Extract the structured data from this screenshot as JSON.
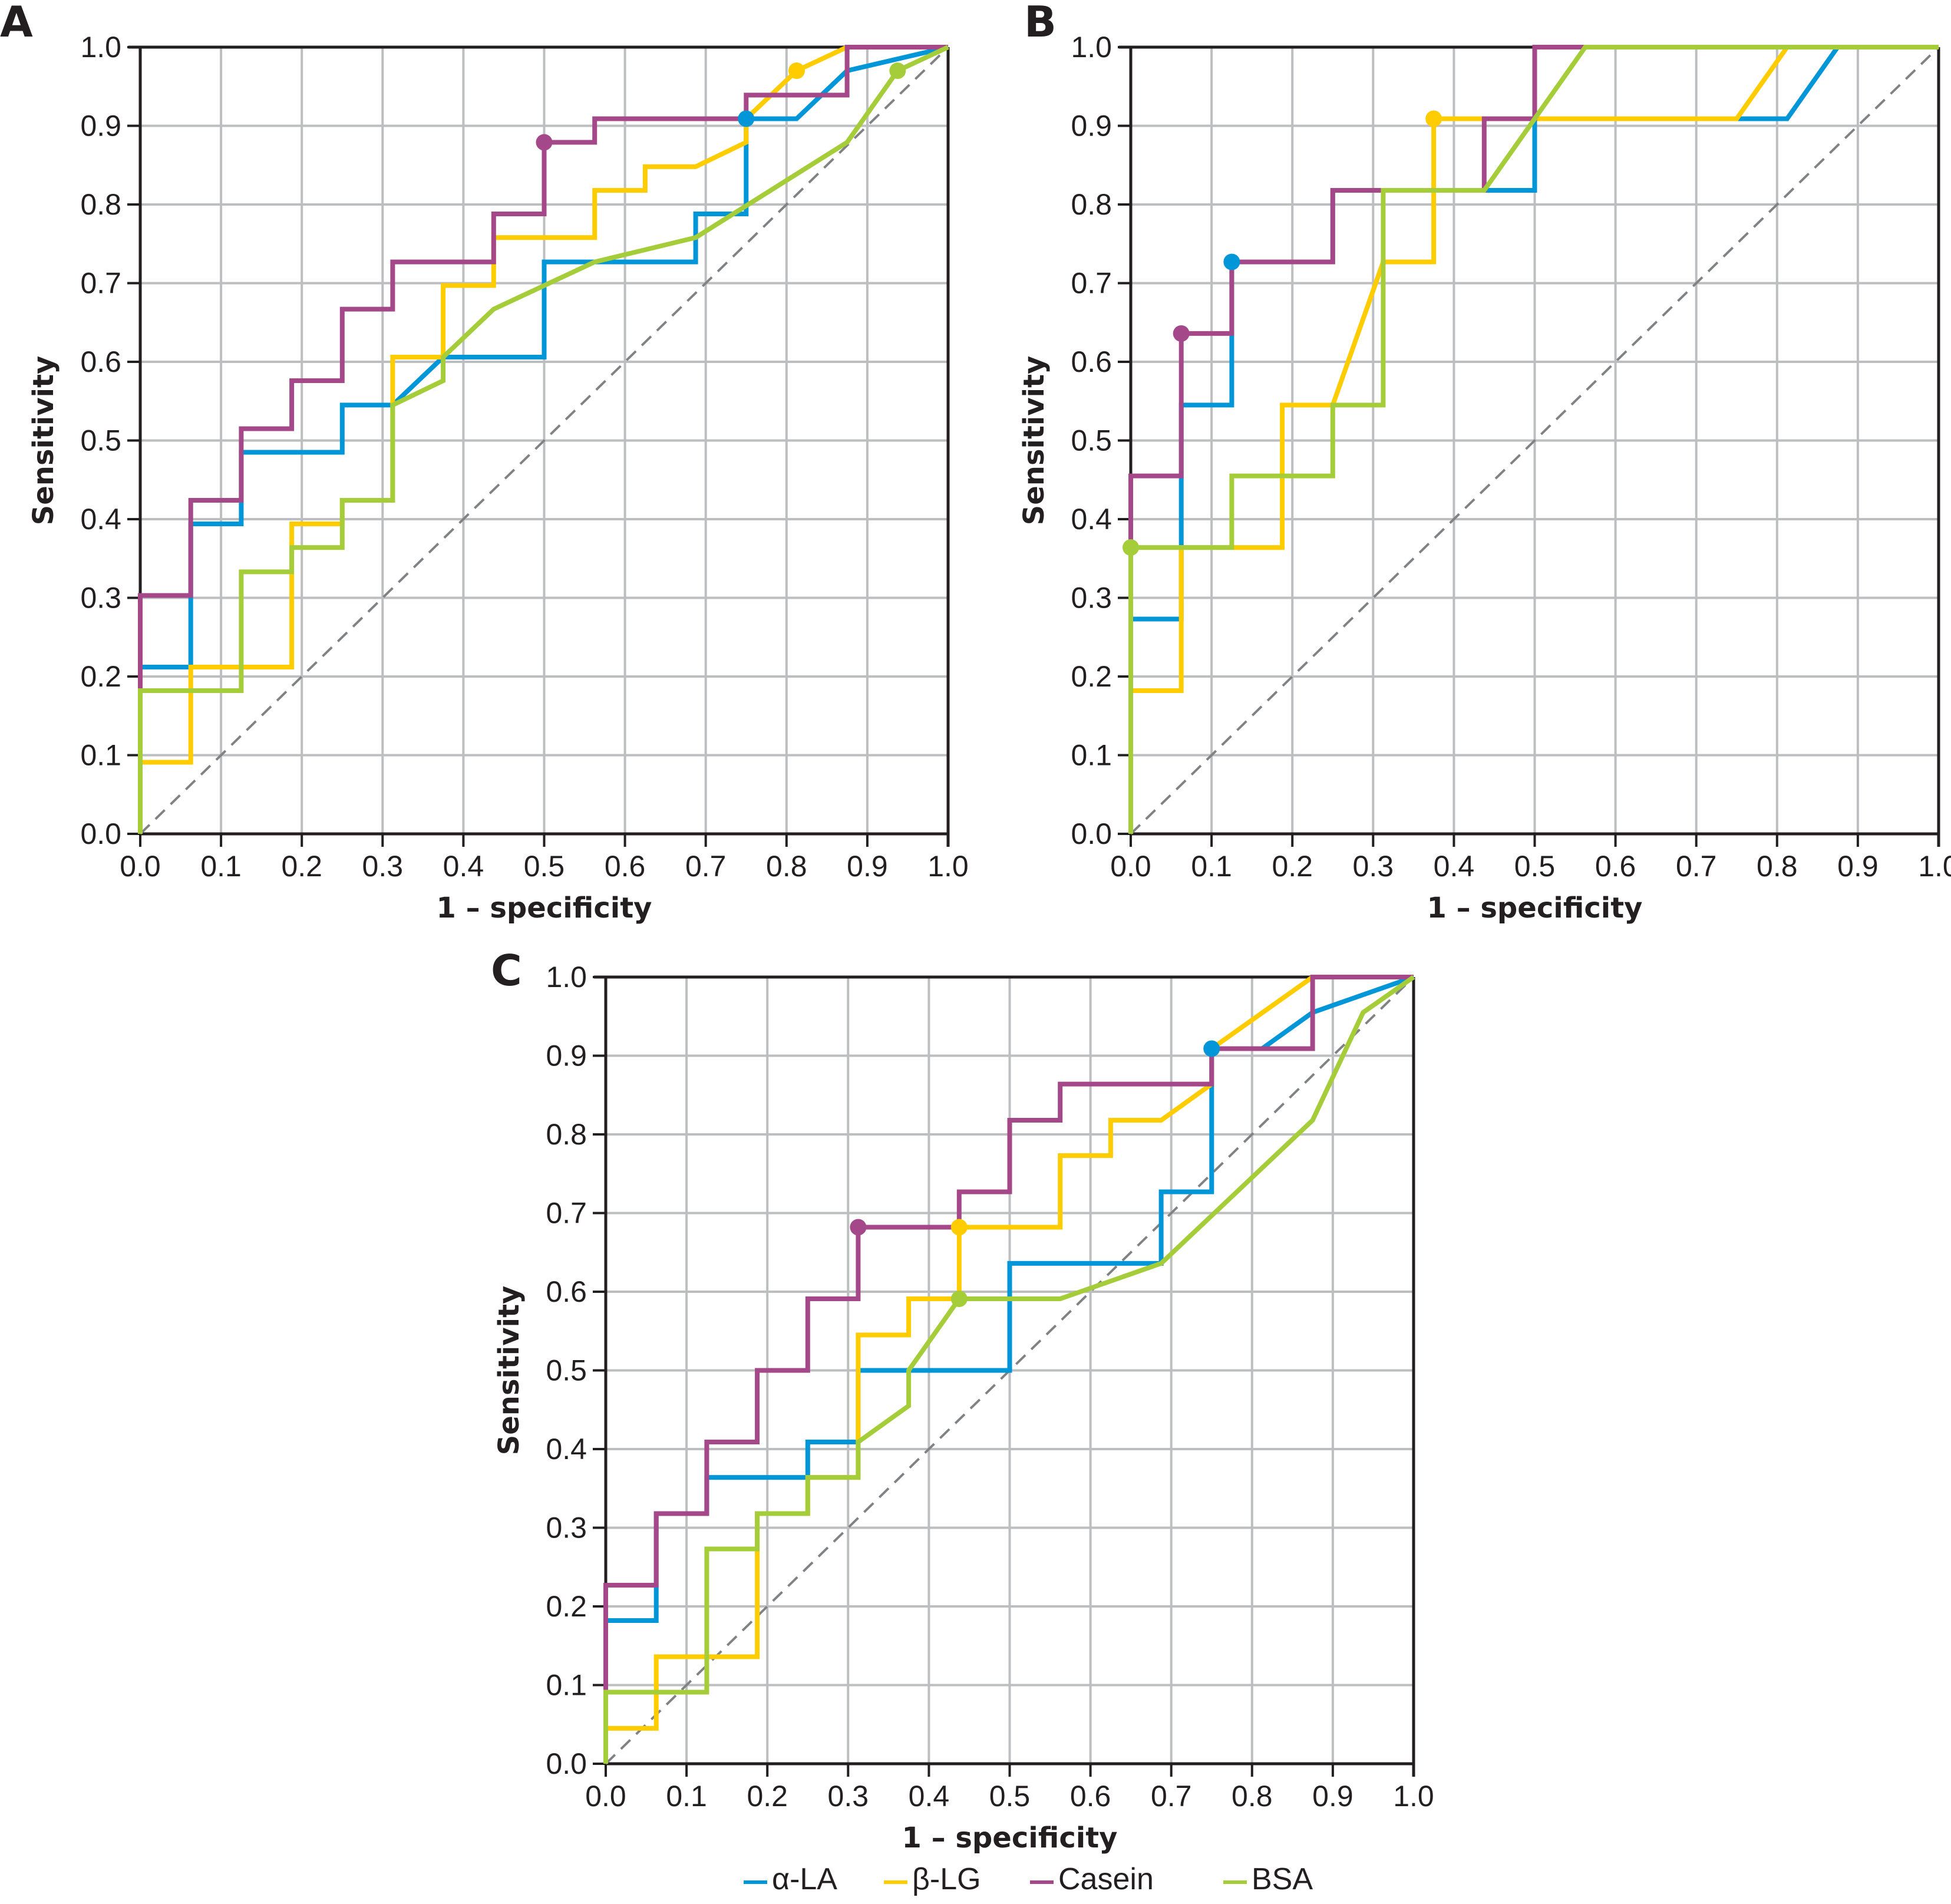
{
  "chart_data": [
    {
      "panel": "A",
      "type": "line",
      "title": "",
      "xlabel": "1 – specificity",
      "ylabel": "Sensitivity",
      "xlim": [
        0,
        1
      ],
      "ylim": [
        0,
        1
      ],
      "xticks": [
        "0.0",
        "0.1",
        "0.2",
        "0.3",
        "0.4",
        "0.5",
        "0.6",
        "0.7",
        "0.8",
        "0.9",
        "1.0"
      ],
      "yticks": [
        "0.0",
        "0.1",
        "0.2",
        "0.3",
        "0.4",
        "0.5",
        "0.6",
        "0.7",
        "0.8",
        "0.9",
        "1.0"
      ],
      "grid": true,
      "reference_line": "diagonal dashed",
      "series": [
        {
          "name": "α-LA",
          "color": "#0096d8",
          "points": [
            [
              0,
              0
            ],
            [
              0,
              0.212
            ],
            [
              0.0625,
              0.212
            ],
            [
              0.0625,
              0.394
            ],
            [
              0.125,
              0.394
            ],
            [
              0.125,
              0.485
            ],
            [
              0.25,
              0.485
            ],
            [
              0.25,
              0.545
            ],
            [
              0.3125,
              0.545
            ],
            [
              0.3125,
              0.545
            ],
            [
              0.375,
              0.606
            ],
            [
              0.5,
              0.606
            ],
            [
              0.5,
              0.727
            ],
            [
              0.6875,
              0.727
            ],
            [
              0.6875,
              0.788
            ],
            [
              0.75,
              0.788
            ],
            [
              0.75,
              0.909
            ],
            [
              0.8125,
              0.909
            ],
            [
              0.875,
              0.97
            ],
            [
              1,
              1
            ]
          ],
          "cutoff": [
            0.75,
            0.909
          ]
        },
        {
          "name": "β-LG",
          "color": "#ffcc00",
          "points": [
            [
              0,
              0
            ],
            [
              0,
              0.091
            ],
            [
              0.0625,
              0.091
            ],
            [
              0.0625,
              0.212
            ],
            [
              0.1875,
              0.212
            ],
            [
              0.1875,
              0.394
            ],
            [
              0.25,
              0.394
            ],
            [
              0.25,
              0.424
            ],
            [
              0.3125,
              0.424
            ],
            [
              0.3125,
              0.606
            ],
            [
              0.375,
              0.606
            ],
            [
              0.375,
              0.697
            ],
            [
              0.4375,
              0.697
            ],
            [
              0.4375,
              0.758
            ],
            [
              0.5625,
              0.758
            ],
            [
              0.5625,
              0.818
            ],
            [
              0.625,
              0.818
            ],
            [
              0.625,
              0.848
            ],
            [
              0.6875,
              0.848
            ],
            [
              0.75,
              0.879
            ],
            [
              0.75,
              0.909
            ],
            [
              0.8125,
              0.97
            ],
            [
              0.875,
              1.0
            ],
            [
              1,
              1
            ]
          ],
          "cutoff": [
            0.8125,
            0.97
          ]
        },
        {
          "name": "Casein",
          "color": "#a4488a",
          "points": [
            [
              0,
              0.182
            ],
            [
              0,
              0.303
            ],
            [
              0.0625,
              0.303
            ],
            [
              0.0625,
              0.424
            ],
            [
              0.125,
              0.424
            ],
            [
              0.125,
              0.515
            ],
            [
              0.1875,
              0.515
            ],
            [
              0.1875,
              0.576
            ],
            [
              0.25,
              0.576
            ],
            [
              0.25,
              0.667
            ],
            [
              0.3125,
              0.667
            ],
            [
              0.3125,
              0.727
            ],
            [
              0.4375,
              0.727
            ],
            [
              0.4375,
              0.788
            ],
            [
              0.5,
              0.788
            ],
            [
              0.5,
              0.879
            ],
            [
              0.5625,
              0.879
            ],
            [
              0.5625,
              0.909
            ],
            [
              0.75,
              0.909
            ],
            [
              0.75,
              0.939
            ],
            [
              0.875,
              0.939
            ],
            [
              0.875,
              1.0
            ],
            [
              1,
              1
            ]
          ],
          "cutoff": [
            0.5,
            0.879
          ]
        },
        {
          "name": "BSA",
          "color": "#a5cd39",
          "points": [
            [
              0,
              0
            ],
            [
              0,
              0.182
            ],
            [
              0.125,
              0.182
            ],
            [
              0.125,
              0.333
            ],
            [
              0.1875,
              0.333
            ],
            [
              0.1875,
              0.364
            ],
            [
              0.25,
              0.364
            ],
            [
              0.25,
              0.424
            ],
            [
              0.3125,
              0.424
            ],
            [
              0.3125,
              0.545
            ],
            [
              0.375,
              0.576
            ],
            [
              0.375,
              0.606
            ],
            [
              0.4375,
              0.667
            ],
            [
              0.5625,
              0.727
            ],
            [
              0.6875,
              0.758
            ],
            [
              0.875,
              0.879
            ],
            [
              0.9375,
              0.97
            ],
            [
              1,
              1
            ]
          ],
          "cutoff": [
            0.9375,
            0.97
          ]
        }
      ]
    },
    {
      "panel": "B",
      "type": "line",
      "title": "",
      "xlabel": "1 – specificity",
      "ylabel": "Sensitivity",
      "xlim": [
        0,
        1
      ],
      "ylim": [
        0,
        1
      ],
      "xticks": [
        "0.0",
        "0.1",
        "0.2",
        "0.3",
        "0.4",
        "0.5",
        "0.6",
        "0.7",
        "0.8",
        "0.9",
        "1.0"
      ],
      "yticks": [
        "0.0",
        "0.1",
        "0.2",
        "0.3",
        "0.4",
        "0.5",
        "0.6",
        "0.7",
        "0.8",
        "0.9",
        "1.0"
      ],
      "grid": true,
      "reference_line": "diagonal dashed",
      "series": [
        {
          "name": "α-LA",
          "color": "#0096d8",
          "points": [
            [
              0,
              0
            ],
            [
              0,
              0.273
            ],
            [
              0.0625,
              0.273
            ],
            [
              0.0625,
              0.545
            ],
            [
              0.125,
              0.545
            ],
            [
              0.125,
              0.727
            ],
            [
              0.25,
              0.727
            ],
            [
              0.25,
              0.818
            ],
            [
              0.5,
              0.818
            ],
            [
              0.5,
              0.909
            ],
            [
              0.8125,
              0.909
            ],
            [
              0.875,
              1.0
            ],
            [
              1,
              1
            ]
          ],
          "cutoff": [
            0.125,
            0.727
          ]
        },
        {
          "name": "β-LG",
          "color": "#ffcc00",
          "points": [
            [
              0,
              0
            ],
            [
              0,
              0.182
            ],
            [
              0.0625,
              0.182
            ],
            [
              0.0625,
              0.364
            ],
            [
              0.1875,
              0.364
            ],
            [
              0.1875,
              0.545
            ],
            [
              0.25,
              0.545
            ],
            [
              0.3125,
              0.727
            ],
            [
              0.375,
              0.727
            ],
            [
              0.375,
              0.909
            ],
            [
              0.75,
              0.909
            ],
            [
              0.8125,
              1.0
            ],
            [
              1,
              1
            ]
          ],
          "cutoff": [
            0.375,
            0.909
          ]
        },
        {
          "name": "Casein",
          "color": "#a4488a",
          "points": [
            [
              0,
              0.364
            ],
            [
              0,
              0.455
            ],
            [
              0.0625,
              0.455
            ],
            [
              0.0625,
              0.636
            ],
            [
              0.125,
              0.636
            ],
            [
              0.125,
              0.727
            ],
            [
              0.25,
              0.727
            ],
            [
              0.25,
              0.818
            ],
            [
              0.4375,
              0.818
            ],
            [
              0.4375,
              0.909
            ],
            [
              0.5,
              0.909
            ],
            [
              0.5,
              1.0
            ],
            [
              1,
              1
            ]
          ],
          "cutoff": [
            0.0625,
            0.636
          ]
        },
        {
          "name": "BSA",
          "color": "#a5cd39",
          "points": [
            [
              0,
              0
            ],
            [
              0,
              0.364
            ],
            [
              0.125,
              0.364
            ],
            [
              0.125,
              0.455
            ],
            [
              0.25,
              0.455
            ],
            [
              0.25,
              0.545
            ],
            [
              0.3125,
              0.545
            ],
            [
              0.3125,
              0.818
            ],
            [
              0.4375,
              0.818
            ],
            [
              0.5625,
              1.0
            ],
            [
              1,
              1
            ]
          ],
          "cutoff": [
            0,
            0.364
          ]
        }
      ]
    },
    {
      "panel": "C",
      "type": "line",
      "title": "",
      "xlabel": "1 – specificity",
      "ylabel": "Sensitivity",
      "xlim": [
        0,
        1
      ],
      "ylim": [
        0,
        1
      ],
      "xticks": [
        "0.0",
        "0.1",
        "0.2",
        "0.3",
        "0.4",
        "0.5",
        "0.6",
        "0.7",
        "0.8",
        "0.9",
        "1.0"
      ],
      "yticks": [
        "0.0",
        "0.1",
        "0.2",
        "0.3",
        "0.4",
        "0.5",
        "0.6",
        "0.7",
        "0.8",
        "0.9",
        "1.0"
      ],
      "grid": true,
      "reference_line": "diagonal dashed",
      "series": [
        {
          "name": "α-LA",
          "color": "#0096d8",
          "points": [
            [
              0,
              0.091
            ],
            [
              0,
              0.182
            ],
            [
              0.0625,
              0.182
            ],
            [
              0.0625,
              0.318
            ],
            [
              0.125,
              0.318
            ],
            [
              0.125,
              0.364
            ],
            [
              0.25,
              0.364
            ],
            [
              0.25,
              0.409
            ],
            [
              0.3125,
              0.409
            ],
            [
              0.3125,
              0.5
            ],
            [
              0.5,
              0.5
            ],
            [
              0.5,
              0.636
            ],
            [
              0.6875,
              0.636
            ],
            [
              0.6875,
              0.727
            ],
            [
              0.75,
              0.727
            ],
            [
              0.75,
              0.909
            ],
            [
              0.8125,
              0.909
            ],
            [
              0.875,
              0.955
            ],
            [
              1,
              1
            ]
          ],
          "cutoff": [
            0.75,
            0.909
          ]
        },
        {
          "name": "β-LG",
          "color": "#ffcc00",
          "points": [
            [
              0,
              0
            ],
            [
              0,
              0.045
            ],
            [
              0.0625,
              0.045
            ],
            [
              0.0625,
              0.136
            ],
            [
              0.1875,
              0.136
            ],
            [
              0.1875,
              0.318
            ],
            [
              0.25,
              0.318
            ],
            [
              0.25,
              0.364
            ],
            [
              0.3125,
              0.364
            ],
            [
              0.3125,
              0.545
            ],
            [
              0.375,
              0.545
            ],
            [
              0.375,
              0.591
            ],
            [
              0.4375,
              0.591
            ],
            [
              0.4375,
              0.682
            ],
            [
              0.5625,
              0.682
            ],
            [
              0.5625,
              0.773
            ],
            [
              0.625,
              0.773
            ],
            [
              0.625,
              0.818
            ],
            [
              0.6875,
              0.818
            ],
            [
              0.75,
              0.864
            ],
            [
              0.75,
              0.909
            ],
            [
              0.875,
              1.0
            ],
            [
              1,
              1
            ]
          ],
          "cutoff": [
            0.4375,
            0.682
          ]
        },
        {
          "name": "Casein",
          "color": "#a4488a",
          "points": [
            [
              0,
              0.091
            ],
            [
              0,
              0.227
            ],
            [
              0.0625,
              0.227
            ],
            [
              0.0625,
              0.318
            ],
            [
              0.125,
              0.318
            ],
            [
              0.125,
              0.409
            ],
            [
              0.1875,
              0.409
            ],
            [
              0.1875,
              0.5
            ],
            [
              0.25,
              0.5
            ],
            [
              0.25,
              0.591
            ],
            [
              0.3125,
              0.591
            ],
            [
              0.3125,
              0.682
            ],
            [
              0.4375,
              0.682
            ],
            [
              0.4375,
              0.727
            ],
            [
              0.5,
              0.727
            ],
            [
              0.5,
              0.818
            ],
            [
              0.5625,
              0.818
            ],
            [
              0.5625,
              0.864
            ],
            [
              0.75,
              0.864
            ],
            [
              0.75,
              0.909
            ],
            [
              0.875,
              0.909
            ],
            [
              0.875,
              1.0
            ],
            [
              1,
              1
            ]
          ],
          "cutoff": [
            0.3125,
            0.682
          ]
        },
        {
          "name": "BSA",
          "color": "#a5cd39",
          "points": [
            [
              0,
              0
            ],
            [
              0,
              0.091
            ],
            [
              0.125,
              0.091
            ],
            [
              0.125,
              0.273
            ],
            [
              0.1875,
              0.273
            ],
            [
              0.1875,
              0.318
            ],
            [
              0.25,
              0.318
            ],
            [
              0.25,
              0.364
            ],
            [
              0.3125,
              0.364
            ],
            [
              0.3125,
              0.409
            ],
            [
              0.375,
              0.455
            ],
            [
              0.375,
              0.5
            ],
            [
              0.4375,
              0.591
            ],
            [
              0.5625,
              0.591
            ],
            [
              0.6875,
              0.636
            ],
            [
              0.875,
              0.818
            ],
            [
              0.9375,
              0.955
            ],
            [
              1,
              1
            ]
          ],
          "cutoff": [
            0.4375,
            0.591
          ]
        }
      ]
    }
  ],
  "legend": {
    "placement": "bottom-center",
    "items": [
      {
        "label": "α-LA",
        "color": "#0096d8"
      },
      {
        "label": "β-LG",
        "color": "#ffcc00"
      },
      {
        "label": "Casein",
        "color": "#a4488a"
      },
      {
        "label": "BSA",
        "color": "#a5cd39"
      }
    ]
  },
  "style": {
    "grid_color": "#bdbec0",
    "axis_color": "#231f20",
    "reference_color": "#808285"
  }
}
